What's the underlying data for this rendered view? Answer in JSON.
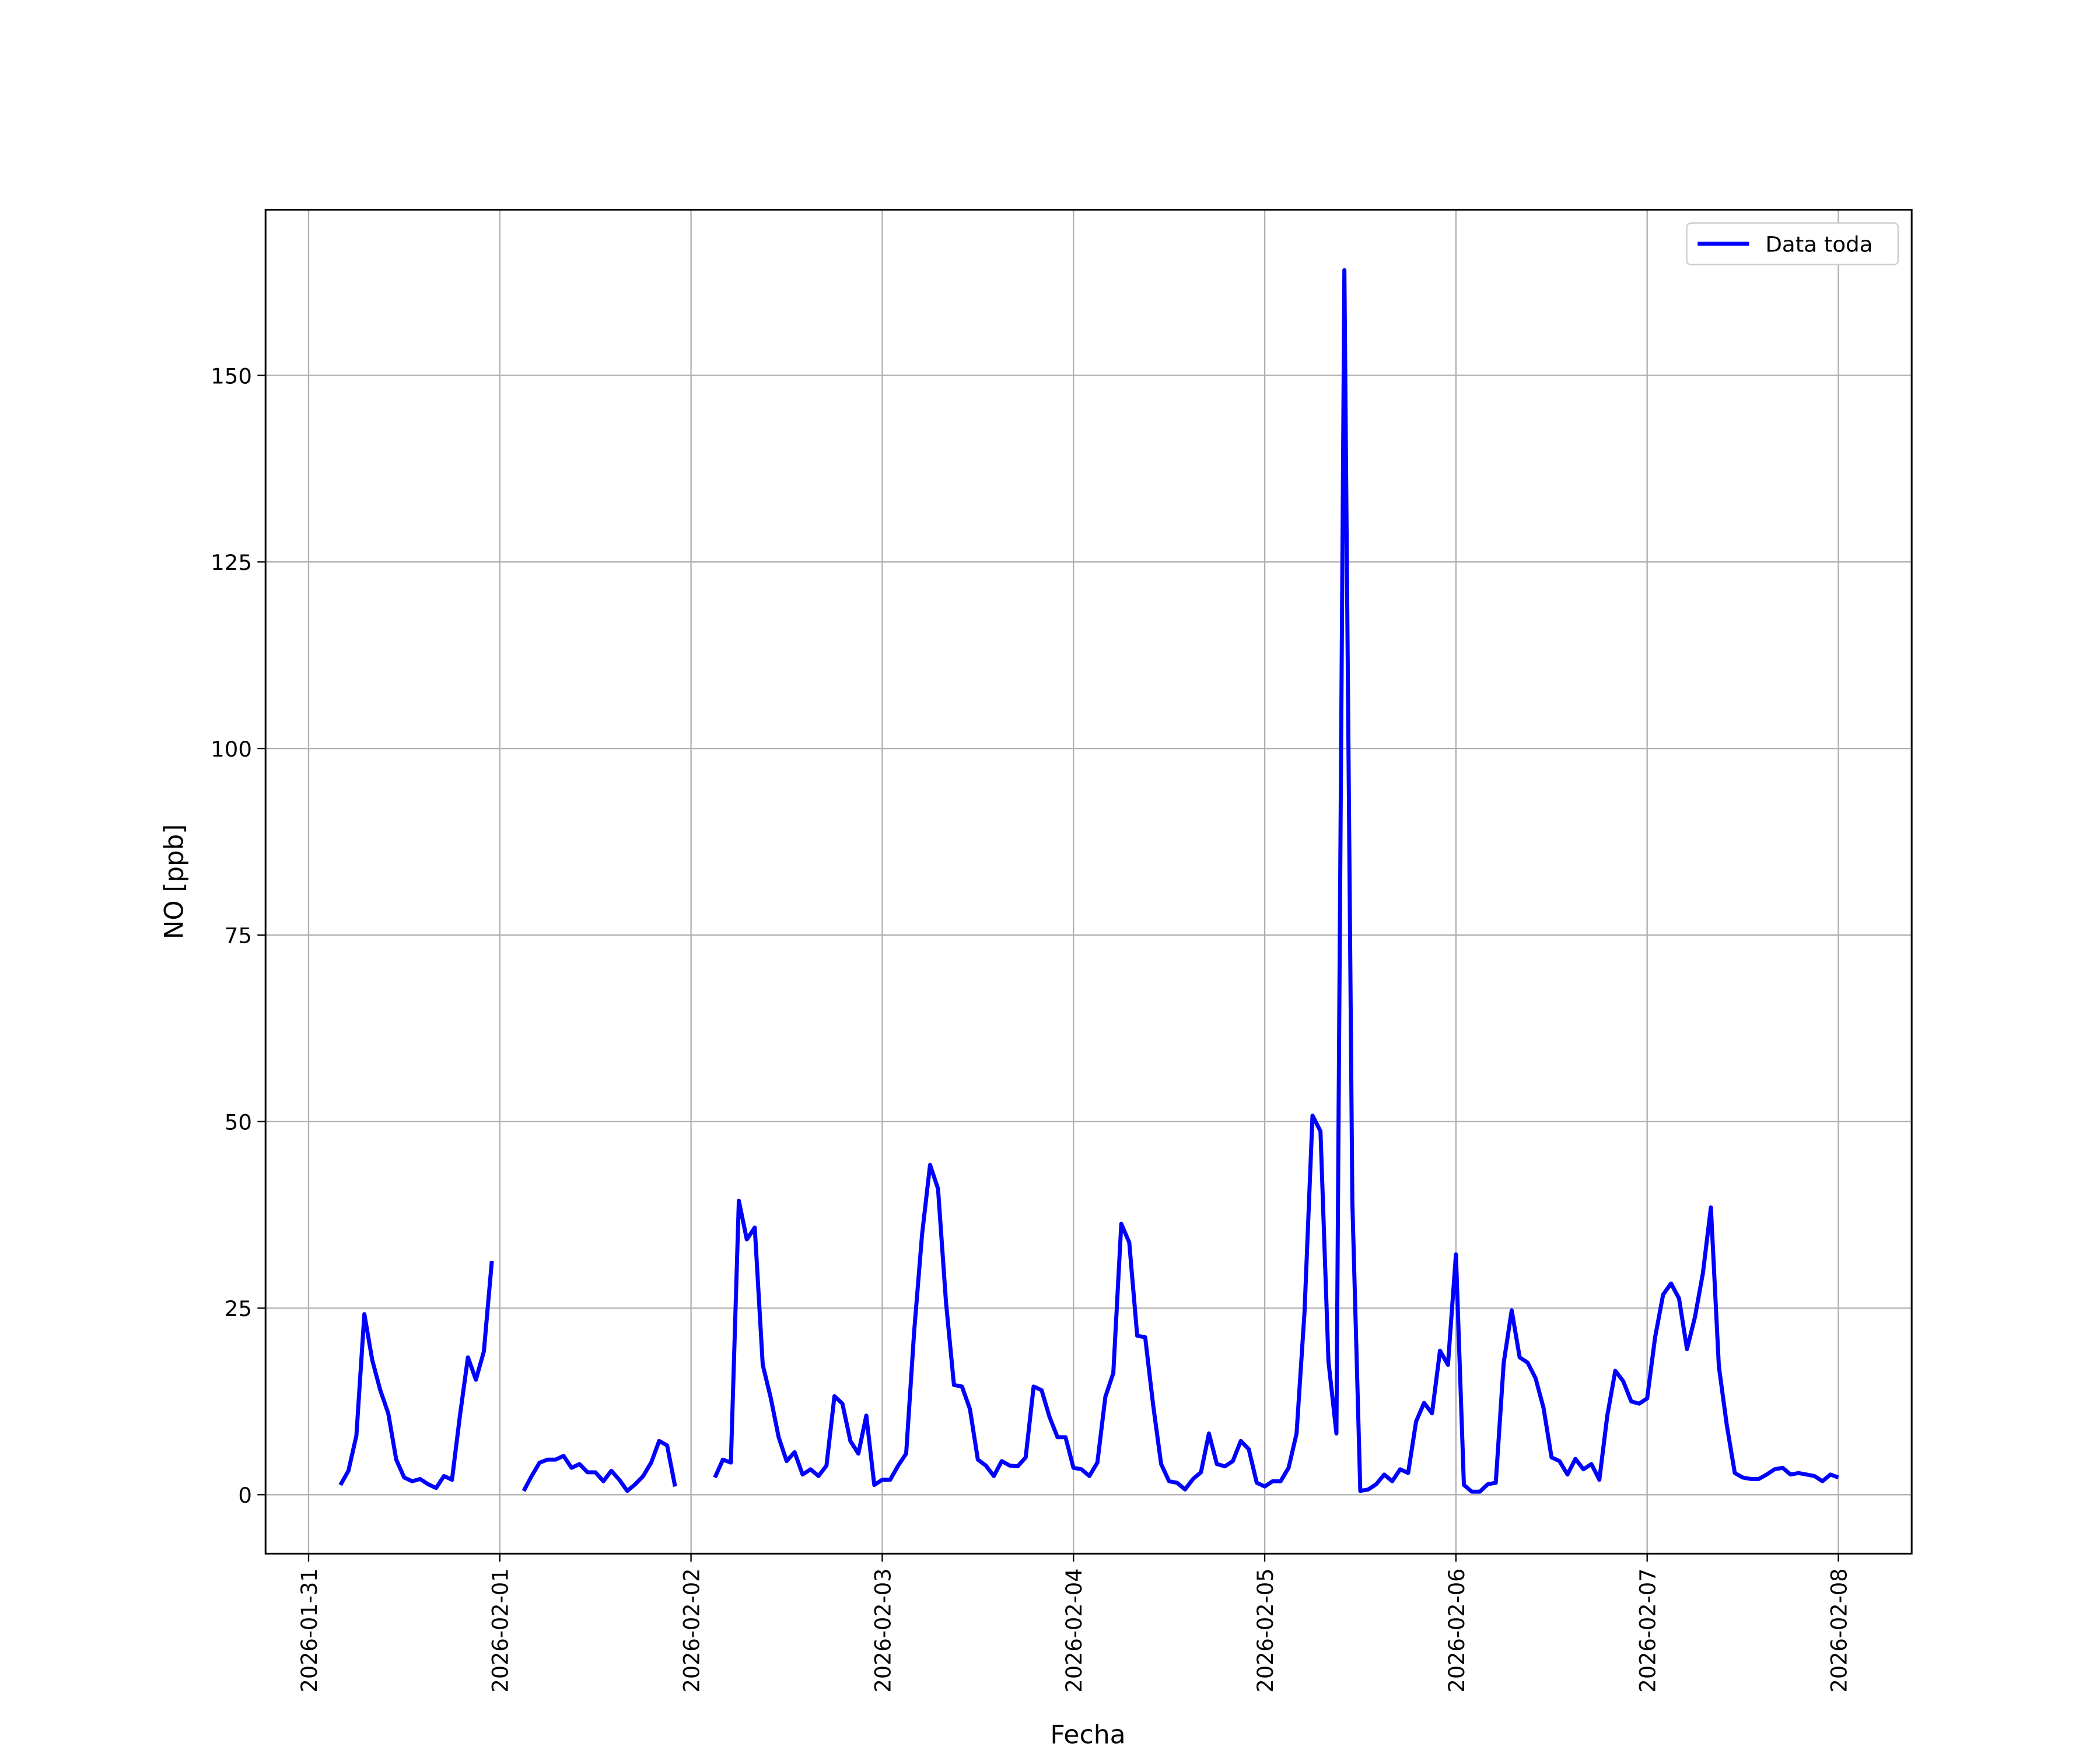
{
  "chart_data": {
    "type": "line",
    "xlabel": "Fecha",
    "ylabel": "NO [ppb]",
    "x": [
      4,
      5,
      6,
      7,
      8,
      9,
      10,
      11,
      12,
      13,
      14,
      15,
      16,
      17,
      18,
      19,
      20,
      21,
      22,
      23,
      24,
      25,
      26,
      27,
      28,
      29,
      30,
      31,
      32,
      33,
      34,
      35,
      36,
      37,
      38,
      39,
      40,
      41,
      42,
      43,
      44,
      45,
      46,
      47,
      48,
      49,
      50,
      51,
      52,
      53,
      54,
      55,
      56,
      57,
      58,
      59,
      60,
      61,
      62,
      63,
      64,
      65,
      66,
      67,
      68,
      69,
      70,
      71,
      72,
      73,
      74,
      75,
      76,
      77,
      78,
      79,
      80,
      81,
      82,
      83,
      84,
      85,
      86,
      87,
      88,
      89,
      90,
      91,
      92,
      93,
      94,
      95,
      96,
      97,
      98,
      99,
      100,
      101,
      102,
      103,
      104,
      105,
      106,
      107,
      108,
      109,
      110,
      111,
      112,
      113,
      114,
      115,
      116,
      117,
      118,
      119,
      120,
      121,
      122,
      123,
      124,
      125,
      126,
      127,
      128,
      129,
      130,
      131,
      132,
      133,
      134,
      135,
      136,
      137,
      138,
      139,
      140,
      141,
      142,
      143,
      144,
      145,
      146,
      147,
      148,
      149,
      150,
      151,
      152,
      153,
      154,
      155,
      156,
      157,
      158,
      159,
      160,
      161,
      162,
      163,
      164,
      165,
      166,
      167,
      168,
      169,
      170,
      171,
      172,
      173,
      174,
      175,
      176,
      177,
      178,
      179,
      180,
      181,
      182,
      183,
      184,
      185,
      186,
      187,
      188,
      189,
      190,
      191,
      192
    ],
    "series": [
      {
        "name": "Data toda",
        "color": "#0000ff",
        "values": [
          1.3,
          3.2,
          7.9,
          24.2,
          18,
          14,
          10.9,
          4.7,
          2.3,
          1.8,
          2.1,
          1.4,
          0.9,
          2.5,
          2,
          10.6,
          18.4,
          15.4,
          19.2,
          31.3,
          null,
          null,
          null,
          0.5,
          2.5,
          4.3,
          4.7,
          4.7,
          5.2,
          3.6,
          4.1,
          3,
          3,
          1.8,
          3.2,
          2,
          0.5,
          1.4,
          2.5,
          4.3,
          7.2,
          6.6,
          1.1,
          null,
          null,
          null,
          null,
          2.3,
          4.7,
          4.3,
          39.4,
          34.2,
          35.8,
          17.4,
          13,
          7.7,
          4.5,
          5.7,
          2.7,
          3.4,
          2.5,
          3.9,
          13.2,
          12.2,
          7.2,
          5.5,
          10.6,
          1.3,
          2,
          2,
          3.9,
          5.5,
          21.8,
          34.9,
          44.2,
          41,
          25.8,
          14.7,
          14.5,
          11.5,
          4.7,
          3.9,
          2.5,
          4.5,
          3.9,
          3.8,
          5,
          14.5,
          14,
          10.4,
          7.7,
          7.7,
          3.6,
          3.4,
          2.5,
          4.3,
          13.1,
          16.3,
          36.3,
          33.8,
          21.3,
          21.1,
          12,
          4.1,
          1.8,
          1.6,
          0.7,
          2.1,
          3,
          8.2,
          4.1,
          3.8,
          4.5,
          7.2,
          6.1,
          1.6,
          1.1,
          1.8,
          1.8,
          3.6,
          8.2,
          24.5,
          50.8,
          48.7,
          17.9,
          8.2,
          164.1,
          39.2,
          0.5,
          0.7,
          1.4,
          2.7,
          1.8,
          3.4,
          2.9,
          9.8,
          12.3,
          10.9,
          19.3,
          17.4,
          32.2,
          1.3,
          0.4,
          0.4,
          1.4,
          1.6,
          17.7,
          24.7,
          18.4,
          17.7,
          15.6,
          11.6,
          5,
          4.5,
          2.7,
          4.8,
          3.4,
          4.1,
          2,
          10.6,
          16.6,
          15.2,
          12.5,
          12.2,
          12.9,
          21.1,
          26.8,
          28.3,
          26.3,
          19.5,
          23.8,
          29.7,
          38.5,
          17.2,
          9.3,
          2.9,
          2.3,
          2.1,
          2.1,
          2.7,
          3.4,
          3.6,
          2.7,
          2.9,
          2.7,
          2.5,
          1.8,
          2.7,
          2.3
        ]
      }
    ],
    "xlim": [
      -5.4,
      201.2
    ],
    "xticks": [
      {
        "value": 0,
        "label": "2026-01-31"
      },
      {
        "value": 24,
        "label": "2026-02-01"
      },
      {
        "value": 48,
        "label": "2026-02-02"
      },
      {
        "value": 72,
        "label": "2026-02-03"
      },
      {
        "value": 96,
        "label": "2026-02-04"
      },
      {
        "value": 120,
        "label": "2026-02-05"
      },
      {
        "value": 144,
        "label": "2026-02-06"
      },
      {
        "value": 168,
        "label": "2026-02-07"
      },
      {
        "value": 192,
        "label": "2026-02-08"
      }
    ],
    "ylim": [
      -7.9,
      172.2
    ],
    "yticks": [
      0,
      25,
      50,
      75,
      100,
      125,
      150
    ],
    "grid": true,
    "legend": "upper right"
  }
}
